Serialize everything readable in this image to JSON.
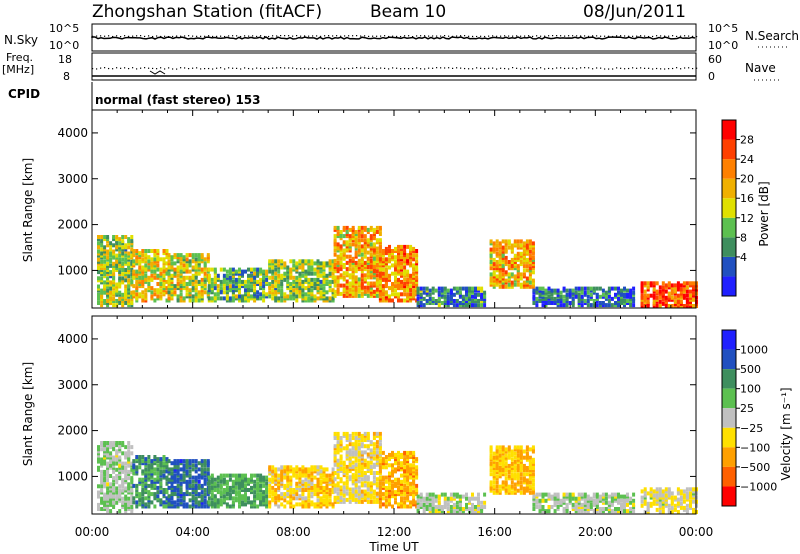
{
  "header": {
    "title": "Zhongshan Station (fitACF)",
    "beam": "Beam 10",
    "date": "08/Jun/2011"
  },
  "top_panels": {
    "nsky_label": "N.Sky",
    "nsky_ticks": [
      "10^5",
      "10^0"
    ],
    "nsearch_label": "N.Search",
    "nsearch_ticks": [
      "10^5",
      "10^0"
    ],
    "freq_label": "Freq.",
    "freq_unit": "[MHz]",
    "freq_ticks": [
      "18",
      "8"
    ],
    "nave_label": "Nave",
    "nave_ticks": [
      "60",
      "0"
    ],
    "cpid_label": "CPID",
    "cpid_text": "normal (fast stereo) 153"
  },
  "colors": {
    "power_scale": [
      "#2020ff",
      "#2050c0",
      "#3e8e5e",
      "#5cc050",
      "#e0e000",
      "#f0b000",
      "#ff8000",
      "#ff4000",
      "#ff0000"
    ],
    "velocity_scale": [
      "#2020ff",
      "#2050c0",
      "#3e8e5e",
      "#5cc050",
      "#c0c0c0",
      "#ffe000",
      "#ffa000",
      "#ff6000",
      "#ff0000"
    ]
  },
  "chart_data": [
    {
      "type": "heatmap",
      "name": "power",
      "xlabel": "",
      "ylabel": "Slant Range [km]",
      "xlim": [
        0,
        24
      ],
      "ylim": [
        180,
        4500
      ],
      "yticks": [
        "4000",
        "3000",
        "2000",
        "1000"
      ],
      "colorbar_label": "Power [dB]",
      "colorbar_ticks": [
        "28",
        "24",
        "20",
        "16",
        "12",
        "8",
        "4"
      ],
      "colorbar_range": [
        0,
        32
      ],
      "regions": [
        {
          "t0": 0.2,
          "t1": 1.6,
          "r0": 200,
          "r1": 1700,
          "v": 14
        },
        {
          "t0": 1.6,
          "t1": 3.0,
          "r0": 300,
          "r1": 1400,
          "v": 18
        },
        {
          "t0": 3.0,
          "t1": 4.6,
          "r0": 300,
          "r1": 1300,
          "v": 16
        },
        {
          "t0": 4.6,
          "t1": 7.0,
          "r0": 300,
          "r1": 1000,
          "v": 12
        },
        {
          "t0": 7.0,
          "t1": 9.6,
          "r0": 300,
          "r1": 1200,
          "v": 14
        },
        {
          "t0": 9.6,
          "t1": 11.4,
          "r0": 400,
          "r1": 1900,
          "v": 20
        },
        {
          "t0": 11.4,
          "t1": 12.9,
          "r0": 300,
          "r1": 1500,
          "v": 22
        },
        {
          "t0": 12.9,
          "t1": 15.6,
          "r0": 200,
          "r1": 600,
          "v": 8
        },
        {
          "t0": 15.8,
          "t1": 17.5,
          "r0": 600,
          "r1": 1600,
          "v": 20
        },
        {
          "t0": 17.5,
          "t1": 21.5,
          "r0": 200,
          "r1": 600,
          "v": 6
        },
        {
          "t0": 21.8,
          "t1": 24.0,
          "r0": 180,
          "r1": 700,
          "v": 26
        }
      ],
      "xticks": [
        "00:00",
        "04:00",
        "08:00",
        "12:00",
        "16:00",
        "20:00",
        "00:00"
      ]
    },
    {
      "type": "heatmap",
      "name": "velocity",
      "xlabel": "Time UT",
      "ylabel": "Slant Range [km]",
      "xlim": [
        0,
        24
      ],
      "ylim": [
        180,
        4500
      ],
      "yticks": [
        "4000",
        "3000",
        "2000",
        "1000"
      ],
      "colorbar_label": "Velocity [m s⁻¹]",
      "colorbar_ticks": [
        "1000",
        "500",
        "100",
        "25",
        "−25",
        "−100",
        "−500",
        "−1000"
      ],
      "colorbar_range": [
        -1200,
        1200
      ],
      "regions": [
        {
          "t0": 0.2,
          "t1": 1.6,
          "r0": 200,
          "r1": 1700,
          "v": 100
        },
        {
          "t0": 1.6,
          "t1": 3.0,
          "r0": 300,
          "r1": 1400,
          "v": 500
        },
        {
          "t0": 3.0,
          "t1": 4.6,
          "r0": 300,
          "r1": 1300,
          "v": 700
        },
        {
          "t0": 4.6,
          "t1": 7.0,
          "r0": 300,
          "r1": 1000,
          "v": 400
        },
        {
          "t0": 7.0,
          "t1": 9.6,
          "r0": 300,
          "r1": 1200,
          "v": -300
        },
        {
          "t0": 9.6,
          "t1": 11.4,
          "r0": 400,
          "r1": 1900,
          "v": -200
        },
        {
          "t0": 11.4,
          "t1": 12.9,
          "r0": 300,
          "r1": 1500,
          "v": -500
        },
        {
          "t0": 12.9,
          "t1": 15.6,
          "r0": 200,
          "r1": 600,
          "v": 50
        },
        {
          "t0": 15.8,
          "t1": 17.5,
          "r0": 600,
          "r1": 1600,
          "v": -400
        },
        {
          "t0": 17.5,
          "t1": 21.5,
          "r0": 200,
          "r1": 600,
          "v": 80
        },
        {
          "t0": 21.8,
          "t1": 24.0,
          "r0": 180,
          "r1": 700,
          "v": -100
        }
      ],
      "xticks": [
        "00:00",
        "04:00",
        "08:00",
        "12:00",
        "16:00",
        "20:00",
        "00:00"
      ]
    }
  ]
}
